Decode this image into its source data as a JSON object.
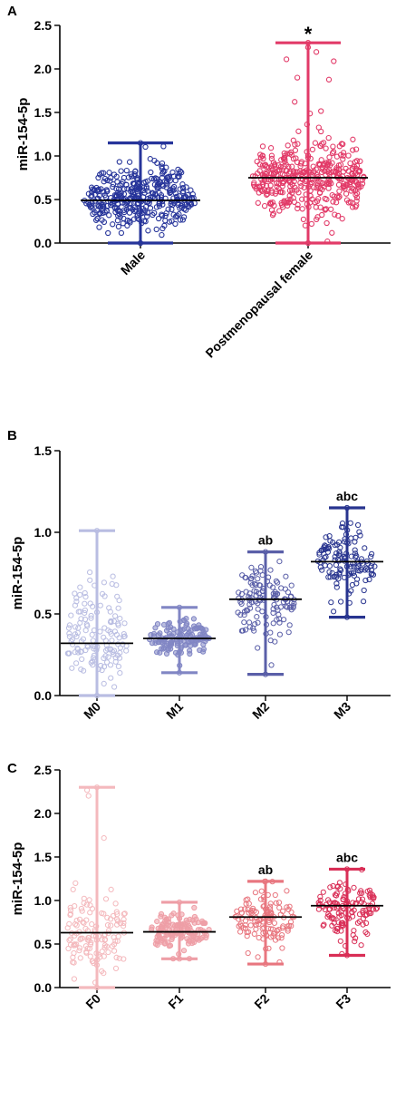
{
  "chart_data": [
    {
      "type": "scatter",
      "panel_label": "A",
      "ylabel": "miR-154-5p",
      "ylim": [
        0,
        2.5
      ],
      "yticks": [
        "0.0",
        "0.5",
        "1.0",
        "1.5",
        "2.0",
        "2.5"
      ],
      "categories": [
        "Male",
        "Postmenopausal female"
      ],
      "groups": [
        {
          "category": "Male",
          "color": "#26349a",
          "fill": "none",
          "median": 0.49,
          "min": 0.0,
          "max": 1.15,
          "spread_low": 0.05,
          "spread_high": 1.05,
          "n": 380,
          "annotation": ""
        },
        {
          "category": "Postmenopausal female",
          "color": "#e23a68",
          "fill": "none",
          "median": 0.75,
          "min": 0.0,
          "max": 2.3,
          "spread_low": 0.1,
          "spread_high": 1.3,
          "n": 420,
          "annotation": "*"
        }
      ]
    },
    {
      "type": "scatter",
      "panel_label": "B",
      "ylabel": "miR-154-5p",
      "ylim": [
        0,
        1.5
      ],
      "yticks": [
        "0.0",
        "0.5",
        "1.0",
        "1.5"
      ],
      "categories": [
        "M0",
        "M1",
        "M2",
        "M3"
      ],
      "groups": [
        {
          "category": "M0",
          "color": "#b9bde2",
          "fill": "none",
          "median": 0.32,
          "min": 0.0,
          "max": 1.01,
          "spread_low": 0.02,
          "spread_high": 0.8,
          "n": 140,
          "annotation": ""
        },
        {
          "category": "M1",
          "color": "#8186c4",
          "fill": "#8186c4",
          "median": 0.35,
          "min": 0.14,
          "max": 0.54,
          "spread_low": 0.18,
          "spread_high": 0.52,
          "n": 130,
          "annotation": ""
        },
        {
          "category": "M2",
          "color": "#5a5fa8",
          "fill": "none",
          "median": 0.59,
          "min": 0.13,
          "max": 0.88,
          "spread_low": 0.3,
          "spread_high": 0.85,
          "n": 130,
          "annotation": "ab"
        },
        {
          "category": "M3",
          "color": "#28348f",
          "fill": "none",
          "median": 0.82,
          "min": 0.48,
          "max": 1.15,
          "spread_low": 0.5,
          "spread_high": 1.12,
          "n": 130,
          "annotation": "abc"
        }
      ]
    },
    {
      "type": "scatter",
      "panel_label": "C",
      "ylabel": "miR-154-5p",
      "ylim": [
        0,
        2.5
      ],
      "yticks": [
        "0.0",
        "0.5",
        "1.0",
        "1.5",
        "2.0",
        "2.5"
      ],
      "categories": [
        "F0",
        "F1",
        "F2",
        "F3"
      ],
      "groups": [
        {
          "category": "F0",
          "color": "#f4b9bd",
          "fill": "none",
          "median": 0.63,
          "min": 0.0,
          "max": 2.3,
          "spread_low": 0.02,
          "spread_high": 1.3,
          "n": 130,
          "annotation": ""
        },
        {
          "category": "F1",
          "color": "#ee9ea6",
          "fill": "#ee9ea6",
          "median": 0.64,
          "min": 0.33,
          "max": 0.98,
          "spread_low": 0.36,
          "spread_high": 0.95,
          "n": 130,
          "annotation": ""
        },
        {
          "category": "F2",
          "color": "#e8767f",
          "fill": "none",
          "median": 0.81,
          "min": 0.27,
          "max": 1.22,
          "spread_low": 0.35,
          "spread_high": 1.18,
          "n": 130,
          "annotation": "ab"
        },
        {
          "category": "F3",
          "color": "#d92e56",
          "fill": "none",
          "median": 0.94,
          "min": 0.37,
          "max": 1.36,
          "spread_low": 0.45,
          "spread_high": 1.32,
          "n": 130,
          "annotation": "abc"
        }
      ]
    }
  ]
}
